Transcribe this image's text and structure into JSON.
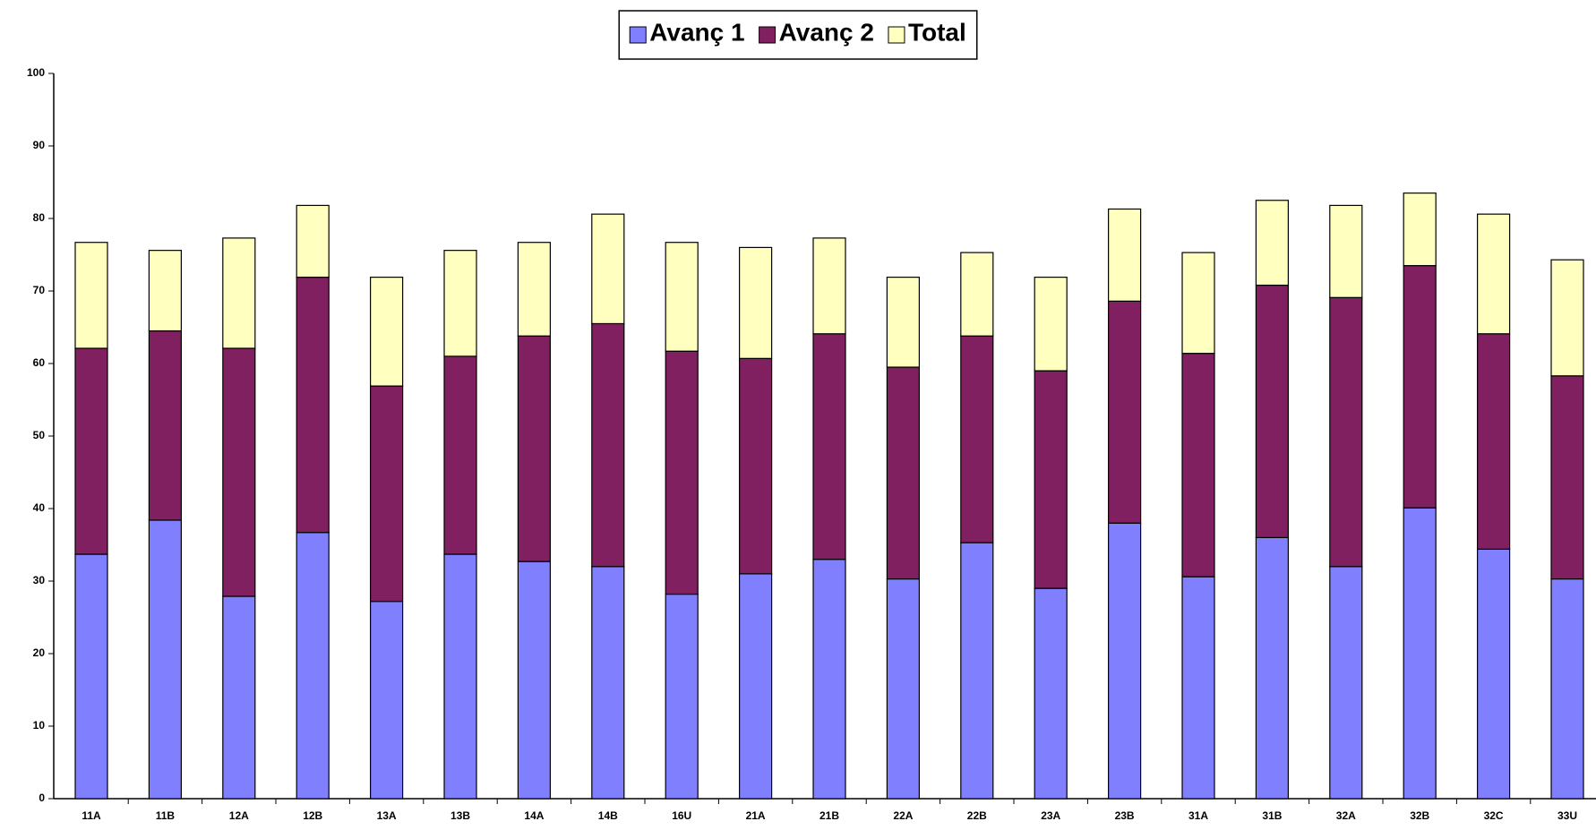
{
  "chart_data": {
    "type": "stacked_bar",
    "categories": [
      "11A",
      "11B",
      "12A",
      "12B",
      "13A",
      "13B",
      "14A",
      "14B",
      "16U",
      "21A",
      "21B",
      "22A",
      "22B",
      "23A",
      "23B",
      "31A",
      "31B",
      "32A",
      "32B",
      "32C",
      "33U"
    ],
    "series": [
      {
        "name": "Avanç 1",
        "color": "#8080ff",
        "values": [
          33.7,
          38.4,
          27.9,
          36.7,
          27.2,
          33.7,
          32.7,
          32.0,
          28.2,
          31.0,
          33.0,
          30.3,
          35.3,
          29.0,
          38.0,
          30.6,
          36.0,
          32.0,
          40.1,
          34.4,
          30.3
        ]
      },
      {
        "name": "Avanç 2",
        "color": "#802060",
        "values": [
          28.4,
          26.1,
          34.2,
          35.2,
          29.7,
          27.3,
          31.1,
          33.5,
          33.5,
          29.7,
          31.1,
          29.2,
          28.5,
          30.0,
          30.6,
          30.8,
          34.8,
          37.1,
          33.4,
          29.7,
          28.0
        ]
      },
      {
        "name": "Total",
        "color": "#ffffc0",
        "values": [
          14.6,
          11.1,
          15.2,
          9.9,
          15.0,
          14.6,
          12.9,
          15.1,
          15.0,
          15.3,
          13.2,
          12.4,
          11.5,
          12.9,
          12.7,
          13.9,
          11.7,
          12.7,
          10.0,
          16.5,
          16.0
        ]
      }
    ],
    "ylim": [
      0,
      100
    ],
    "yticks": [
      0,
      10,
      20,
      30,
      40,
      50,
      60,
      70,
      80,
      90,
      100
    ],
    "grid": false,
    "legend": "top"
  }
}
